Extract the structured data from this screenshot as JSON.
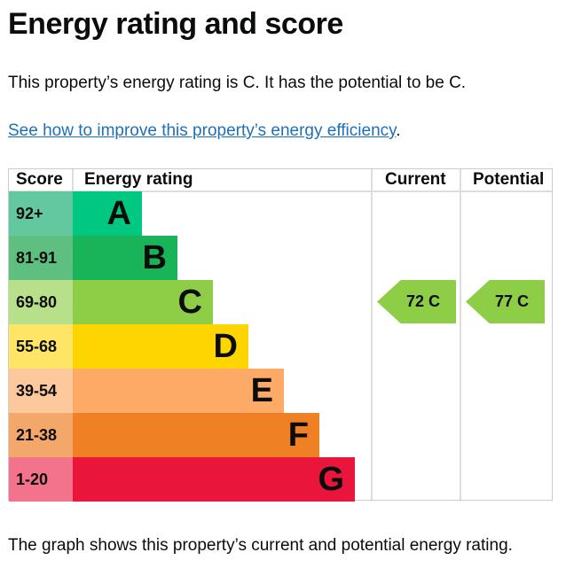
{
  "title": "Energy rating and score",
  "summary": "This property’s energy rating is C. It has the potential to be C.",
  "link": "See how to improve this property’s energy efficiency",
  "link_suffix": ".",
  "table": {
    "headers": {
      "score": "Score",
      "rating": "Energy rating",
      "current": "Current",
      "potential": "Potential"
    },
    "rows": [
      {
        "score": "92+",
        "band": "A",
        "color": "#00c781",
        "score_color": "#63c79f"
      },
      {
        "score": "81-91",
        "band": "B",
        "color": "#19b459",
        "score_color": "#5fbf80"
      },
      {
        "score": "69-80",
        "band": "C",
        "color": "#8dce46",
        "score_color": "#b8df8a"
      },
      {
        "score": "55-68",
        "band": "D",
        "color": "#ffd500",
        "score_color": "#ffe566"
      },
      {
        "score": "39-54",
        "band": "E",
        "color": "#fcaa65",
        "score_color": "#fdc89b"
      },
      {
        "score": "21-38",
        "band": "F",
        "color": "#ef8023",
        "score_color": "#f4a76a"
      },
      {
        "score": "1-20",
        "band": "G",
        "color": "#e9153b",
        "score_color": "#f2738b"
      }
    ],
    "current": {
      "label": "72  C",
      "score": 72,
      "band": "C",
      "color": "#8dce46"
    },
    "potential": {
      "label": "77  C",
      "score": 77,
      "band": "C",
      "color": "#8dce46"
    }
  },
  "footer": "The graph shows this property’s current and potential energy rating."
}
